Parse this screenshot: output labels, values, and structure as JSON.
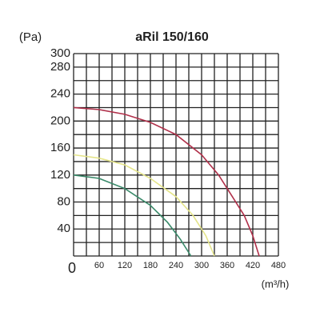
{
  "chart_data": {
    "type": "line",
    "title": "aRil 150/160",
    "y_label": "(Pa)",
    "x_label": "(m³/h)",
    "xlim": [
      0,
      480
    ],
    "ylim": [
      0,
      300
    ],
    "xticks": [
      0,
      60,
      120,
      180,
      240,
      300,
      360,
      420,
      480
    ],
    "yticks": [
      40,
      80,
      120,
      160,
      200,
      240,
      280,
      300
    ],
    "xgrid": [
      0,
      30,
      60,
      90,
      120,
      150,
      180,
      210,
      240,
      270,
      300,
      330,
      360,
      390,
      420,
      450,
      480
    ],
    "ygrid": [
      0,
      20,
      40,
      60,
      80,
      100,
      120,
      140,
      160,
      180,
      200,
      220,
      240,
      260,
      280,
      300
    ],
    "grid": true,
    "series": [
      {
        "color": "#b0304a",
        "x": [
          0,
          60,
          120,
          180,
          240,
          300,
          340,
          370,
          400,
          420,
          435
        ],
        "values": [
          220,
          217,
          210,
          198,
          180,
          150,
          120,
          90,
          60,
          30,
          0
        ]
      },
      {
        "color": "#e4e48a",
        "x": [
          0,
          60,
          120,
          180,
          240,
          280,
          310,
          330
        ],
        "values": [
          150,
          145,
          135,
          115,
          88,
          60,
          30,
          0
        ]
      },
      {
        "color": "#3a8a6a",
        "x": [
          0,
          60,
          120,
          180,
          220,
          250,
          275
        ],
        "values": [
          120,
          115,
          100,
          75,
          50,
          25,
          0
        ]
      }
    ]
  }
}
